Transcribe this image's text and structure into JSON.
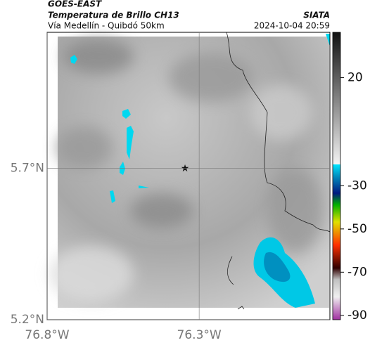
{
  "header": {
    "title": "GOES-EAST",
    "subtitle": "Temperatura de Brillo CH13",
    "route": "Vía Medellín - Quibdó 50km",
    "source": "SIATA",
    "timestamp": "2024-10-04 20:59"
  },
  "map": {
    "xlim": [
      -76.8,
      -75.87
    ],
    "ylim": [
      5.2,
      6.15
    ],
    "xticks": [
      {
        "value": -76.8,
        "label": "76.8°W"
      },
      {
        "value": -76.3,
        "label": "76.3°W"
      }
    ],
    "yticks": [
      {
        "value": 5.7,
        "label": "5.7°N"
      },
      {
        "value": 5.2,
        "label": "5.2°N"
      }
    ],
    "grid": true
  },
  "colorbar": {
    "lim": [
      -92,
      41
    ],
    "ticks": [
      20,
      -30,
      -50,
      -70,
      -90
    ]
  }
}
